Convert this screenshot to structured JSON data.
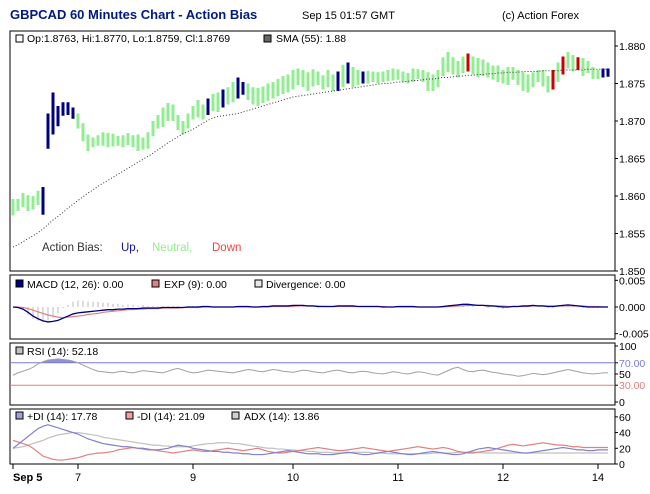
{
  "header": {
    "title": "GBPCAD 60 Minutes Chart - Action Bias",
    "timestamp": "Sep 15 01:57 GMT",
    "credit": "(c) Action Forex"
  },
  "colors": {
    "up": "#000080",
    "neutral": "#90ee90",
    "down": "#cc0000",
    "sma": "#333333",
    "macd": "#000080",
    "exp": "#e08080",
    "divergence": "#dddddd",
    "rsi": "#a0a0a0",
    "rsi_fill": "#7b7bd6",
    "rsi_70": "#7b7bd6",
    "rsi_30": "#e08080",
    "plus_di": "#8080d0",
    "minus_di": "#e08080",
    "adx": "#c0c0c0"
  },
  "price_panel": {
    "ohlc_label": "Op:1.8763, Hi:1.8770, Lo:1.8759, Cl:1.8769",
    "sma_label": "SMA (55): 1.88",
    "bias_label": "Action Bias:",
    "bias_up": "Up,",
    "bias_neutral": "Neutral,",
    "bias_down": "Down",
    "y_ticks": [
      "1.880",
      "1.875",
      "1.870",
      "1.865",
      "1.860",
      "1.855",
      "1.850"
    ],
    "y_tick_values": [
      1.88,
      1.875,
      1.87,
      1.865,
      1.86,
      1.855,
      1.85
    ]
  },
  "macd_panel": {
    "macd_label": "MACD (12, 26): 0.00",
    "exp_label": "EXP (9): 0.00",
    "div_label": "Divergence: 0.00",
    "y_ticks": [
      "0.005",
      "0.000",
      "-0.005"
    ],
    "y_tick_values": [
      0.005,
      0.0,
      -0.005
    ]
  },
  "rsi_panel": {
    "rsi_label": "RSI (14): 52.18",
    "y_ticks": [
      "100",
      "70.00",
      "50",
      "30.00",
      "0"
    ],
    "y_tick_values": [
      100,
      70,
      50,
      30,
      0
    ]
  },
  "dmi_panel": {
    "plus_label": "+DI (14): 17.78",
    "minus_label": "-DI (14): 21.09",
    "adx_label": "ADX (14): 13.86",
    "y_ticks": [
      "60",
      "40",
      "20",
      "0"
    ],
    "y_tick_values": [
      60,
      40,
      20,
      0
    ]
  },
  "x_axis": {
    "labels": [
      "Sep 5",
      "7",
      "9",
      "10",
      "11",
      "12",
      "14"
    ],
    "label_bar_index": [
      0,
      13,
      36,
      56,
      77,
      98,
      117
    ]
  },
  "chart_data": {
    "type": "bar",
    "title": "GBPCAD 60 Minutes Chart - Action Bias",
    "bar_count": 120,
    "candles_lo_hi": [
      [
        1.8574,
        1.8596
      ],
      [
        1.858,
        1.8596
      ],
      [
        1.8585,
        1.8604
      ],
      [
        1.858,
        1.8601
      ],
      [
        1.8582,
        1.86
      ],
      [
        1.8588,
        1.8607
      ],
      [
        1.8575,
        1.8612
      ],
      [
        1.8663,
        1.871
      ],
      [
        1.8682,
        1.8738
      ],
      [
        1.8693,
        1.872
      ],
      [
        1.8707,
        1.8725
      ],
      [
        1.8708,
        1.8725
      ],
      [
        1.8703,
        1.8718
      ],
      [
        1.869,
        1.871
      ],
      [
        1.8673,
        1.8697
      ],
      [
        1.866,
        1.8682
      ],
      [
        1.8665,
        1.8678
      ],
      [
        1.8667,
        1.8681
      ],
      [
        1.8667,
        1.8685
      ],
      [
        1.8665,
        1.8684
      ],
      [
        1.8666,
        1.8683
      ],
      [
        1.8667,
        1.868
      ],
      [
        1.8665,
        1.8681
      ],
      [
        1.8668,
        1.8684
      ],
      [
        1.8665,
        1.8681
      ],
      [
        1.866,
        1.8682
      ],
      [
        1.8662,
        1.8678
      ],
      [
        1.8663,
        1.8685
      ],
      [
        1.868,
        1.87
      ],
      [
        1.869,
        1.8708
      ],
      [
        1.8692,
        1.8718
      ],
      [
        1.87,
        1.8724
      ],
      [
        1.87,
        1.8722
      ],
      [
        1.8688,
        1.8708
      ],
      [
        1.8682,
        1.87
      ],
      [
        1.869,
        1.871
      ],
      [
        1.8702,
        1.872
      ],
      [
        1.8705,
        1.8728
      ],
      [
        1.8702,
        1.8722
      ],
      [
        1.8708,
        1.873
      ],
      [
        1.8713,
        1.8736
      ],
      [
        1.8712,
        1.8738
      ],
      [
        1.8718,
        1.8742
      ],
      [
        1.8722,
        1.8745
      ],
      [
        1.8725,
        1.8752
      ],
      [
        1.873,
        1.8758
      ],
      [
        1.8735,
        1.8752
      ],
      [
        1.8728,
        1.875
      ],
      [
        1.8722,
        1.8745
      ],
      [
        1.872,
        1.8744
      ],
      [
        1.8724,
        1.8746
      ],
      [
        1.8727,
        1.875
      ],
      [
        1.873,
        1.8752
      ],
      [
        1.8733,
        1.8756
      ],
      [
        1.8736,
        1.876
      ],
      [
        1.8738,
        1.8762
      ],
      [
        1.8742,
        1.8768
      ],
      [
        1.8748,
        1.877
      ],
      [
        1.8745,
        1.8768
      ],
      [
        1.874,
        1.8765
      ],
      [
        1.8746,
        1.8769
      ],
      [
        1.8748,
        1.8766
      ],
      [
        1.8742,
        1.8761
      ],
      [
        1.8745,
        1.8768
      ],
      [
        1.874,
        1.8762
      ],
      [
        1.874,
        1.8766
      ],
      [
        1.8745,
        1.8775
      ],
      [
        1.875,
        1.8778
      ],
      [
        1.8745,
        1.8772
      ],
      [
        1.8748,
        1.8768
      ],
      [
        1.875,
        1.8766
      ],
      [
        1.875,
        1.8767
      ],
      [
        1.8752,
        1.8766
      ],
      [
        1.875,
        1.8765
      ],
      [
        1.8752,
        1.8766
      ],
      [
        1.8753,
        1.8768
      ],
      [
        1.8754,
        1.877
      ],
      [
        1.8755,
        1.8769
      ],
      [
        1.8752,
        1.8766
      ],
      [
        1.875,
        1.8764
      ],
      [
        1.8752,
        1.877
      ],
      [
        1.8756,
        1.8769
      ],
      [
        1.8752,
        1.8768
      ],
      [
        1.874,
        1.8765
      ],
      [
        1.874,
        1.8762
      ],
      [
        1.8745,
        1.8768
      ],
      [
        1.876,
        1.8785
      ],
      [
        1.8765,
        1.8792
      ],
      [
        1.8762,
        1.8785
      ],
      [
        1.8758,
        1.878
      ],
      [
        1.8764,
        1.8786
      ],
      [
        1.8766,
        1.879
      ],
      [
        1.8762,
        1.8786
      ],
      [
        1.8758,
        1.8784
      ],
      [
        1.876,
        1.8782
      ],
      [
        1.8758,
        1.8778
      ],
      [
        1.8755,
        1.8774
      ],
      [
        1.8752,
        1.8774
      ],
      [
        1.875,
        1.8768
      ],
      [
        1.8748,
        1.8772
      ],
      [
        1.8755,
        1.8772
      ],
      [
        1.8748,
        1.8768
      ],
      [
        1.874,
        1.8765
      ],
      [
        1.8738,
        1.8762
      ],
      [
        1.8745,
        1.8765
      ],
      [
        1.8752,
        1.8768
      ],
      [
        1.8746,
        1.8768
      ],
      [
        1.8738,
        1.876
      ],
      [
        1.8742,
        1.8768
      ],
      [
        1.8752,
        1.8778
      ],
      [
        1.8762,
        1.8786
      ],
      [
        1.877,
        1.8792
      ],
      [
        1.8766,
        1.8788
      ],
      [
        1.8768,
        1.8785
      ],
      [
        1.876,
        1.8784
      ],
      [
        1.8764,
        1.878
      ],
      [
        1.8756,
        1.8772
      ],
      [
        1.8756,
        1.8768
      ],
      [
        1.8758,
        1.877
      ],
      [
        1.8759,
        1.877
      ]
    ],
    "bias": "nnnnnnUUUUUUUnnnnnnnnnnnnnnnnnnnnnnnnnnUnnUnnUUnnnnnnnnnnnnnnnnnnUnUnnUnnnnnnnnnnnnnnnnnnnnDnnnnnnnnnnnnnnnnDnDnnDnnnnUUnnnnnnnn",
    "sma_series": [
      1.8532,
      1.8535,
      1.8539,
      1.8543,
      1.8547,
      1.8551,
      1.8556,
      1.8562,
      1.8568,
      1.8573,
      1.8578,
      1.8584,
      1.8589,
      1.8594,
      1.8599,
      1.8604,
      1.8608,
      1.8613,
      1.8617,
      1.8621,
      1.8625,
      1.8629,
      1.8633,
      1.8637,
      1.8641,
      1.8645,
      1.8649,
      1.8653,
      1.8657,
      1.8662,
      1.8666,
      1.8671,
      1.8675,
      1.8679,
      1.8683,
      1.8686,
      1.8689,
      1.8693,
      1.8697,
      1.8701,
      1.8704,
      1.8706,
      1.8707,
      1.8708,
      1.8709,
      1.871,
      1.8712,
      1.8714,
      1.8716,
      1.8718,
      1.872,
      1.8722,
      1.8724,
      1.8726,
      1.8728,
      1.873,
      1.8732,
      1.8733,
      1.8734,
      1.8735,
      1.8736,
      1.8737,
      1.8738,
      1.8739,
      1.874,
      1.8741,
      1.8742,
      1.8743,
      1.8744,
      1.8745,
      1.8746,
      1.8747,
      1.8748,
      1.8749,
      1.875,
      1.875,
      1.8751,
      1.8752,
      1.8752,
      1.8753,
      1.8754,
      1.8754,
      1.8755,
      1.8756,
      1.8756,
      1.8757,
      1.8758,
      1.8758,
      1.8759,
      1.876,
      1.876,
      1.8761,
      1.8761,
      1.8762,
      1.8762,
      1.8763,
      1.8763,
      1.8764,
      1.8764,
      1.8765,
      1.8765,
      1.8765,
      1.8766,
      1.8766,
      1.8766,
      1.8766,
      1.8767,
      1.8767,
      1.8767,
      1.8767,
      1.8768,
      1.8768,
      1.8768,
      1.8768,
      1.8768,
      1.8769,
      1.8769,
      1.8769,
      1.8769,
      1.8769
    ],
    "macd_series": [
      0.0,
      -0.0001,
      -0.0004,
      -0.001,
      -0.0017,
      -0.0022,
      -0.0026,
      -0.0028,
      -0.0027,
      -0.0025,
      -0.0021,
      -0.0017,
      -0.0013,
      -0.0011,
      -0.001,
      -0.0009,
      -0.0008,
      -0.0007,
      -0.0006,
      -0.0005,
      -0.0005,
      -0.0004,
      -0.0004,
      -0.0003,
      -0.0003,
      -0.0003,
      -0.0002,
      -0.0002,
      -0.0002,
      -0.0002,
      -0.0001,
      -0.0001,
      -0.0001,
      -0.0001,
      -0.0001,
      0.0,
      0.0,
      0.0,
      0.0001,
      0.0001,
      0.0,
      0.0,
      0.0,
      0.0,
      0.0,
      0.0001,
      0.0001,
      0.0001,
      0.0,
      0.0,
      0.0001,
      0.0001,
      0.0002,
      0.0002,
      0.0002,
      0.0002,
      0.0003,
      0.0003,
      0.0003,
      0.0002,
      0.0002,
      0.0001,
      0.0001,
      0.0001,
      0.0001,
      0.0002,
      0.0002,
      0.0002,
      0.0002,
      0.0001,
      0.0001,
      0.0001,
      0.0001,
      0.0001,
      0.0,
      0.0,
      0.0,
      0.0001,
      0.0001,
      0.0001,
      0.0001,
      0.0,
      0.0,
      0.0,
      0.0,
      0.0,
      0.0001,
      0.0002,
      0.0003,
      0.0004,
      0.0005,
      0.0005,
      0.0004,
      0.0003,
      0.0003,
      0.0002,
      0.0002,
      0.0001,
      0.0,
      0.0,
      0.0001,
      0.0001,
      0.0002,
      0.0002,
      0.0003,
      0.0002,
      0.0002,
      0.0001,
      0.0001,
      0.0002,
      0.0003,
      0.0004,
      0.0003,
      0.0002,
      0.0001,
      0.0,
      0.0,
      0.0,
      0.0,
      0.0
    ],
    "exp_series": [
      0.0,
      0.0,
      -0.0001,
      -0.0003,
      -0.0006,
      -0.0009,
      -0.0012,
      -0.0015,
      -0.0017,
      -0.0019,
      -0.002,
      -0.0019,
      -0.0018,
      -0.0017,
      -0.0016,
      -0.0014,
      -0.0013,
      -0.0012,
      -0.001,
      -0.0009,
      -0.0008,
      -0.0007,
      -0.0006,
      -0.0005,
      -0.0005,
      -0.0004,
      -0.0004,
      -0.0003,
      -0.0003,
      -0.0003,
      -0.0002,
      -0.0002,
      -0.0002,
      -0.0002,
      -0.0001,
      -0.0001,
      -0.0001,
      -0.0001,
      0.0,
      0.0,
      0.0,
      0.0,
      0.0,
      0.0,
      0.0,
      0.0,
      0.0,
      0.0,
      0.0,
      0.0,
      0.0,
      0.0,
      0.0001,
      0.0001,
      0.0001,
      0.0001,
      0.0001,
      0.0002,
      0.0002,
      0.0002,
      0.0002,
      0.0002,
      0.0001,
      0.0001,
      0.0001,
      0.0001,
      0.0001,
      0.0001,
      0.0001,
      0.0001,
      0.0001,
      0.0001,
      0.0001,
      0.0001,
      0.0001,
      0.0,
      0.0,
      0.0,
      0.0,
      0.0,
      0.0,
      0.0,
      0.0,
      0.0,
      0.0,
      0.0,
      0.0,
      0.0001,
      0.0001,
      0.0002,
      0.0002,
      0.0003,
      0.0003,
      0.0003,
      0.0003,
      0.0003,
      0.0002,
      0.0002,
      0.0002,
      0.0001,
      0.0001,
      0.0001,
      0.0001,
      0.0001,
      0.0002,
      0.0002,
      0.0002,
      0.0002,
      0.0002,
      0.0002,
      0.0002,
      0.0002,
      0.0002,
      0.0002,
      0.0002,
      0.0001,
      0.0001,
      0.0001,
      0.0,
      0.0
    ],
    "rsi_series": [
      48,
      52,
      55,
      58,
      62,
      68,
      72,
      75,
      76,
      77,
      76,
      75,
      73,
      70,
      66,
      62,
      58,
      55,
      54,
      53,
      52,
      54,
      55,
      53,
      52,
      54,
      56,
      55,
      54,
      53,
      52,
      55,
      58,
      60,
      57,
      54,
      52,
      53,
      55,
      57,
      56,
      55,
      54,
      53,
      52,
      54,
      56,
      58,
      57,
      55,
      54,
      56,
      58,
      57,
      55,
      54,
      53,
      55,
      57,
      56,
      54,
      53,
      52,
      54,
      56,
      57,
      55,
      53,
      52,
      54,
      55,
      54,
      52,
      51,
      50,
      52,
      54,
      53,
      51,
      50,
      52,
      54,
      53,
      51,
      49,
      48,
      52,
      56,
      60,
      62,
      58,
      55,
      54,
      56,
      57,
      55,
      53,
      52,
      50,
      49,
      48,
      46,
      47,
      49,
      51,
      50,
      49,
      50,
      52,
      54,
      56,
      58,
      56,
      54,
      52,
      51,
      50,
      51,
      52,
      52
    ],
    "plus_di_series": [
      20,
      25,
      30,
      35,
      40,
      45,
      48,
      50,
      48,
      46,
      44,
      42,
      40,
      38,
      35,
      32,
      30,
      28,
      26,
      25,
      24,
      23,
      22,
      22,
      21,
      20,
      20,
      19,
      18,
      18,
      19,
      20,
      22,
      24,
      23,
      22,
      20,
      19,
      18,
      17,
      16,
      16,
      15,
      15,
      14,
      14,
      13,
      13,
      12,
      12,
      12,
      13,
      14,
      15,
      16,
      17,
      16,
      15,
      14,
      13,
      13,
      13,
      12,
      12,
      12,
      13,
      14,
      15,
      14,
      13,
      12,
      12,
      13,
      14,
      15,
      16,
      15,
      14,
      13,
      12,
      12,
      13,
      14,
      15,
      16,
      15,
      14,
      13,
      12,
      12,
      13,
      15,
      17,
      19,
      20,
      21,
      20,
      19,
      18,
      17,
      16,
      15,
      14,
      14,
      15,
      16,
      17,
      18,
      19,
      20,
      21,
      20,
      19,
      18,
      18,
      17,
      17,
      18,
      18,
      18
    ],
    "minus_di_series": [
      30,
      28,
      26,
      24,
      20,
      15,
      10,
      8,
      6,
      5,
      5,
      6,
      7,
      8,
      10,
      12,
      13,
      14,
      14,
      15,
      16,
      18,
      19,
      20,
      21,
      20,
      19,
      18,
      18,
      17,
      16,
      15,
      14,
      15,
      16,
      17,
      18,
      17,
      16,
      16,
      17,
      18,
      19,
      20,
      19,
      18,
      17,
      18,
      19,
      20,
      18,
      16,
      15,
      14,
      14,
      15,
      16,
      17,
      18,
      19,
      20,
      21,
      20,
      19,
      18,
      17,
      17,
      18,
      19,
      20,
      21,
      20,
      19,
      18,
      17,
      16,
      17,
      18,
      19,
      20,
      21,
      22,
      21,
      20,
      19,
      20,
      21,
      20,
      18,
      16,
      15,
      14,
      14,
      15,
      16,
      17,
      18,
      20,
      22,
      24,
      25,
      24,
      23,
      24,
      25,
      26,
      27,
      26,
      25,
      24,
      24,
      23,
      22,
      22,
      21,
      21,
      21,
      21,
      21,
      21
    ],
    "adx_series": [
      20,
      21,
      22,
      24,
      26,
      28,
      30,
      33,
      35,
      37,
      38,
      39,
      40,
      40,
      39,
      38,
      37,
      36,
      34,
      33,
      32,
      31,
      30,
      29,
      28,
      27,
      26,
      25,
      24,
      24,
      23,
      23,
      22,
      22,
      22,
      22,
      23,
      24,
      25,
      26,
      26,
      27,
      27,
      27,
      26,
      26,
      25,
      24,
      23,
      22,
      21,
      20,
      20,
      19,
      19,
      18,
      18,
      17,
      17,
      16,
      16,
      15,
      15,
      15,
      14,
      14,
      14,
      14,
      15,
      15,
      15,
      15,
      14,
      14,
      14,
      13,
      13,
      13,
      13,
      13,
      13,
      13,
      13,
      13,
      14,
      14,
      14,
      14,
      14,
      15,
      15,
      15,
      15,
      15,
      14,
      14,
      14,
      14,
      14,
      14,
      14,
      14,
      14,
      14,
      14,
      14,
      14,
      14,
      14,
      14,
      14,
      14,
      14,
      14,
      14,
      14,
      14,
      14,
      14,
      14
    ],
    "ylim_price": [
      1.85,
      1.882
    ],
    "ylim_macd": [
      -0.006,
      0.006
    ],
    "ylim_rsi": [
      0,
      100
    ],
    "ylim_dmi": [
      0,
      70
    ]
  }
}
